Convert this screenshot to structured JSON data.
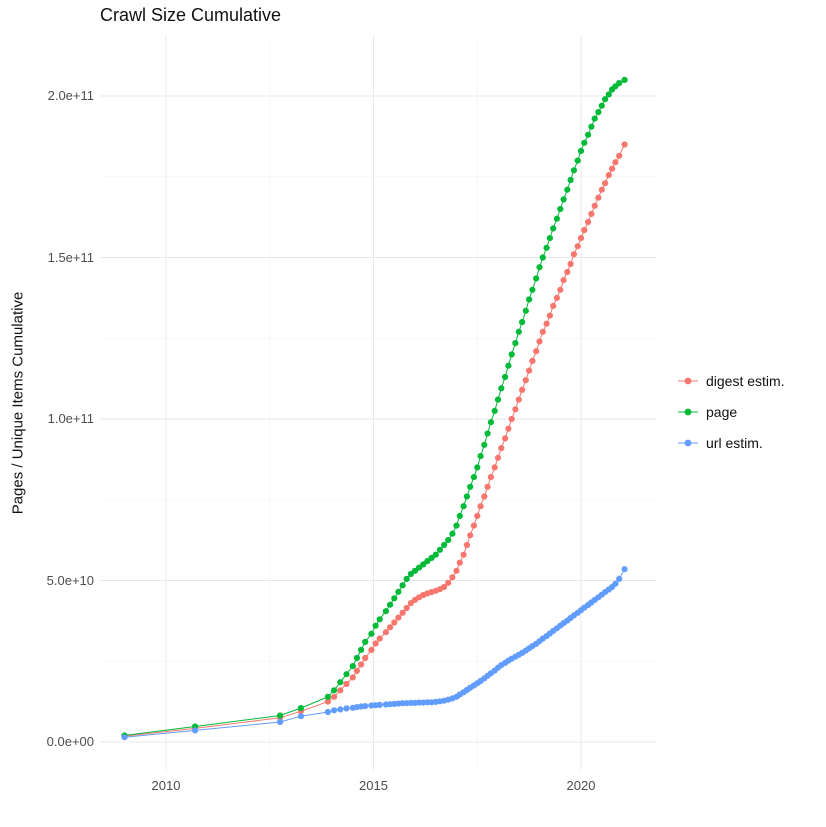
{
  "title": "Crawl Size Cumulative",
  "y_axis_label": "Pages / Unique Items Cumulative",
  "colors": {
    "digest": "#F8766D",
    "page": "#00BA38",
    "url": "#619CFF"
  },
  "chart_data": {
    "type": "scatter",
    "title": "Crawl Size Cumulative",
    "xlabel": "",
    "ylabel": "Pages / Unique Items Cumulative",
    "y_unit": "items, values stored in billions (1e9)",
    "grid": true,
    "legend_position": "right",
    "xlim": [
      2008.4,
      2021.8
    ],
    "ylim_billions": [
      -8,
      218
    ],
    "x_ticks": [
      {
        "value": 2010,
        "label": "2010"
      },
      {
        "value": 2015,
        "label": "2015"
      },
      {
        "value": 2020,
        "label": "2020"
      }
    ],
    "y_ticks": [
      {
        "value": 0,
        "label": "0.0e+00"
      },
      {
        "value": 50,
        "label": "5.0e+10"
      },
      {
        "value": 100,
        "label": "1.0e+11"
      },
      {
        "value": 150,
        "label": "1.5e+11"
      },
      {
        "value": 200,
        "label": "2.0e+11"
      }
    ],
    "x_minor": [
      2012.5,
      2017.5
    ],
    "y_minor_billions": [
      25,
      75,
      125,
      175
    ],
    "series": [
      {
        "name": "digest estim.",
        "color": "#F8766D",
        "points": [
          [
            2009.0,
            1.8
          ],
          [
            2010.7,
            4.2
          ],
          [
            2012.75,
            7.5
          ],
          [
            2013.25,
            9.5
          ],
          [
            2013.9,
            12.5
          ],
          [
            2014.05,
            14
          ],
          [
            2014.2,
            16
          ],
          [
            2014.35,
            18
          ],
          [
            2014.5,
            20
          ],
          [
            2014.6,
            22
          ],
          [
            2014.7,
            24
          ],
          [
            2014.8,
            26
          ],
          [
            2014.95,
            28.5
          ],
          [
            2015.05,
            30.5
          ],
          [
            2015.15,
            32
          ],
          [
            2015.3,
            34
          ],
          [
            2015.4,
            35.5
          ],
          [
            2015.5,
            37
          ],
          [
            2015.6,
            38.5
          ],
          [
            2015.7,
            40
          ],
          [
            2015.8,
            41.5
          ],
          [
            2015.9,
            43
          ],
          [
            2016.0,
            44
          ],
          [
            2016.1,
            44.8
          ],
          [
            2016.2,
            45.5
          ],
          [
            2016.3,
            46
          ],
          [
            2016.4,
            46.4
          ],
          [
            2016.5,
            46.8
          ],
          [
            2016.6,
            47.3
          ],
          [
            2016.7,
            48
          ],
          [
            2016.8,
            49.3
          ],
          [
            2016.9,
            51
          ],
          [
            2017.0,
            53
          ],
          [
            2017.08,
            55.5
          ],
          [
            2017.17,
            58
          ],
          [
            2017.25,
            61
          ],
          [
            2017.33,
            64
          ],
          [
            2017.42,
            67
          ],
          [
            2017.5,
            70
          ],
          [
            2017.58,
            73
          ],
          [
            2017.67,
            76
          ],
          [
            2017.75,
            79
          ],
          [
            2017.83,
            82
          ],
          [
            2017.92,
            85
          ],
          [
            2018.0,
            88
          ],
          [
            2018.08,
            91
          ],
          [
            2018.17,
            94
          ],
          [
            2018.25,
            97
          ],
          [
            2018.33,
            100
          ],
          [
            2018.42,
            103
          ],
          [
            2018.5,
            106
          ],
          [
            2018.58,
            109
          ],
          [
            2018.67,
            112
          ],
          [
            2018.75,
            115
          ],
          [
            2018.83,
            118
          ],
          [
            2018.92,
            121
          ],
          [
            2019.0,
            124
          ],
          [
            2019.08,
            127
          ],
          [
            2019.17,
            129.5
          ],
          [
            2019.25,
            132
          ],
          [
            2019.33,
            135
          ],
          [
            2019.42,
            137.5
          ],
          [
            2019.5,
            140
          ],
          [
            2019.58,
            143
          ],
          [
            2019.67,
            145.5
          ],
          [
            2019.75,
            148
          ],
          [
            2019.83,
            151
          ],
          [
            2019.92,
            153.5
          ],
          [
            2020.0,
            156
          ],
          [
            2020.08,
            158.5
          ],
          [
            2020.17,
            161
          ],
          [
            2020.25,
            163.5
          ],
          [
            2020.33,
            166
          ],
          [
            2020.42,
            168.5
          ],
          [
            2020.5,
            171
          ],
          [
            2020.58,
            173
          ],
          [
            2020.67,
            175.5
          ],
          [
            2020.75,
            177.5
          ],
          [
            2020.83,
            179.5
          ],
          [
            2020.92,
            181.5
          ],
          [
            2021.05,
            185
          ]
        ]
      },
      {
        "name": "page",
        "color": "#00BA38",
        "points": [
          [
            2009.0,
            2
          ],
          [
            2010.7,
            4.8
          ],
          [
            2012.75,
            8.2
          ],
          [
            2013.25,
            10.5
          ],
          [
            2013.9,
            14
          ],
          [
            2014.05,
            16
          ],
          [
            2014.2,
            18.5
          ],
          [
            2014.35,
            21
          ],
          [
            2014.5,
            23.5
          ],
          [
            2014.6,
            26
          ],
          [
            2014.7,
            28.5
          ],
          [
            2014.8,
            31
          ],
          [
            2014.95,
            33.5
          ],
          [
            2015.05,
            36
          ],
          [
            2015.15,
            38
          ],
          [
            2015.3,
            40.5
          ],
          [
            2015.4,
            42.5
          ],
          [
            2015.5,
            44.5
          ],
          [
            2015.6,
            46.5
          ],
          [
            2015.7,
            48.5
          ],
          [
            2015.8,
            50.5
          ],
          [
            2015.9,
            52
          ],
          [
            2016.0,
            53
          ],
          [
            2016.1,
            54
          ],
          [
            2016.2,
            55
          ],
          [
            2016.3,
            56
          ],
          [
            2016.4,
            57
          ],
          [
            2016.5,
            58
          ],
          [
            2016.6,
            59.5
          ],
          [
            2016.7,
            61
          ],
          [
            2016.8,
            62.5
          ],
          [
            2016.9,
            64.5
          ],
          [
            2017.0,
            67
          ],
          [
            2017.08,
            70
          ],
          [
            2017.17,
            73
          ],
          [
            2017.25,
            76
          ],
          [
            2017.33,
            79
          ],
          [
            2017.42,
            82
          ],
          [
            2017.5,
            85
          ],
          [
            2017.58,
            88.5
          ],
          [
            2017.67,
            92
          ],
          [
            2017.75,
            95.5
          ],
          [
            2017.83,
            99
          ],
          [
            2017.92,
            102.5
          ],
          [
            2018.0,
            106
          ],
          [
            2018.08,
            109.5
          ],
          [
            2018.17,
            113
          ],
          [
            2018.25,
            116.5
          ],
          [
            2018.33,
            120
          ],
          [
            2018.42,
            123.5
          ],
          [
            2018.5,
            127
          ],
          [
            2018.58,
            130
          ],
          [
            2018.67,
            133.5
          ],
          [
            2018.75,
            137
          ],
          [
            2018.83,
            140
          ],
          [
            2018.92,
            143.5
          ],
          [
            2019.0,
            147
          ],
          [
            2019.08,
            150
          ],
          [
            2019.17,
            153
          ],
          [
            2019.25,
            156
          ],
          [
            2019.33,
            159
          ],
          [
            2019.42,
            162
          ],
          [
            2019.5,
            165
          ],
          [
            2019.58,
            168
          ],
          [
            2019.67,
            171
          ],
          [
            2019.75,
            174
          ],
          [
            2019.83,
            177
          ],
          [
            2019.92,
            180
          ],
          [
            2020.0,
            183
          ],
          [
            2020.08,
            185.5
          ],
          [
            2020.17,
            188
          ],
          [
            2020.25,
            190.5
          ],
          [
            2020.33,
            193
          ],
          [
            2020.42,
            195
          ],
          [
            2020.5,
            197
          ],
          [
            2020.58,
            199
          ],
          [
            2020.67,
            200.5
          ],
          [
            2020.75,
            202
          ],
          [
            2020.83,
            203
          ],
          [
            2020.92,
            204
          ],
          [
            2021.05,
            205
          ]
        ]
      },
      {
        "name": "url estim.",
        "color": "#619CFF",
        "points": [
          [
            2009.0,
            1.5
          ],
          [
            2010.7,
            3.6
          ],
          [
            2012.75,
            6.2
          ],
          [
            2013.25,
            8
          ],
          [
            2013.9,
            9.3
          ],
          [
            2014.05,
            9.8
          ],
          [
            2014.2,
            10.1
          ],
          [
            2014.35,
            10.4
          ],
          [
            2014.5,
            10.6
          ],
          [
            2014.6,
            10.8
          ],
          [
            2014.7,
            11
          ],
          [
            2014.8,
            11.1
          ],
          [
            2014.95,
            11.3
          ],
          [
            2015.05,
            11.4
          ],
          [
            2015.15,
            11.5
          ],
          [
            2015.3,
            11.6
          ],
          [
            2015.4,
            11.7
          ],
          [
            2015.5,
            11.8
          ],
          [
            2015.6,
            11.9
          ],
          [
            2015.7,
            12
          ],
          [
            2015.8,
            12
          ],
          [
            2015.9,
            12.1
          ],
          [
            2016.0,
            12.1
          ],
          [
            2016.1,
            12.2
          ],
          [
            2016.2,
            12.2
          ],
          [
            2016.3,
            12.3
          ],
          [
            2016.4,
            12.3
          ],
          [
            2016.5,
            12.4
          ],
          [
            2016.6,
            12.6
          ],
          [
            2016.7,
            12.8
          ],
          [
            2016.8,
            13.1
          ],
          [
            2016.9,
            13.5
          ],
          [
            2017.0,
            14
          ],
          [
            2017.08,
            14.7
          ],
          [
            2017.17,
            15.4
          ],
          [
            2017.25,
            16.1
          ],
          [
            2017.33,
            16.8
          ],
          [
            2017.42,
            17.5
          ],
          [
            2017.5,
            18.2
          ],
          [
            2017.58,
            18.9
          ],
          [
            2017.67,
            19.7
          ],
          [
            2017.75,
            20.5
          ],
          [
            2017.83,
            21.3
          ],
          [
            2017.92,
            22.1
          ],
          [
            2018.0,
            23
          ],
          [
            2018.08,
            23.8
          ],
          [
            2018.17,
            24.5
          ],
          [
            2018.25,
            25.2
          ],
          [
            2018.33,
            25.8
          ],
          [
            2018.42,
            26.4
          ],
          [
            2018.5,
            27
          ],
          [
            2018.58,
            27.6
          ],
          [
            2018.67,
            28.3
          ],
          [
            2018.75,
            29
          ],
          [
            2018.83,
            29.7
          ],
          [
            2018.92,
            30.4
          ],
          [
            2019.0,
            31.2
          ],
          [
            2019.08,
            32
          ],
          [
            2019.17,
            32.8
          ],
          [
            2019.25,
            33.6
          ],
          [
            2019.33,
            34.4
          ],
          [
            2019.42,
            35.2
          ],
          [
            2019.5,
            36
          ],
          [
            2019.58,
            36.8
          ],
          [
            2019.67,
            37.6
          ],
          [
            2019.75,
            38.4
          ],
          [
            2019.83,
            39.2
          ],
          [
            2019.92,
            40
          ],
          [
            2020.0,
            40.8
          ],
          [
            2020.08,
            41.6
          ],
          [
            2020.17,
            42.4
          ],
          [
            2020.25,
            43.2
          ],
          [
            2020.33,
            44
          ],
          [
            2020.42,
            44.8
          ],
          [
            2020.5,
            45.6
          ],
          [
            2020.58,
            46.4
          ],
          [
            2020.67,
            47.2
          ],
          [
            2020.75,
            48
          ],
          [
            2020.83,
            49
          ],
          [
            2020.92,
            50.5
          ],
          [
            2021.05,
            53.5
          ]
        ]
      }
    ]
  },
  "style": {
    "grid_major_color": "#e8e8e8",
    "grid_minor_color": "#f5f5f5",
    "tick_label_color": "#4d4d4d",
    "text_color": "#111111",
    "background": "#ffffff"
  }
}
